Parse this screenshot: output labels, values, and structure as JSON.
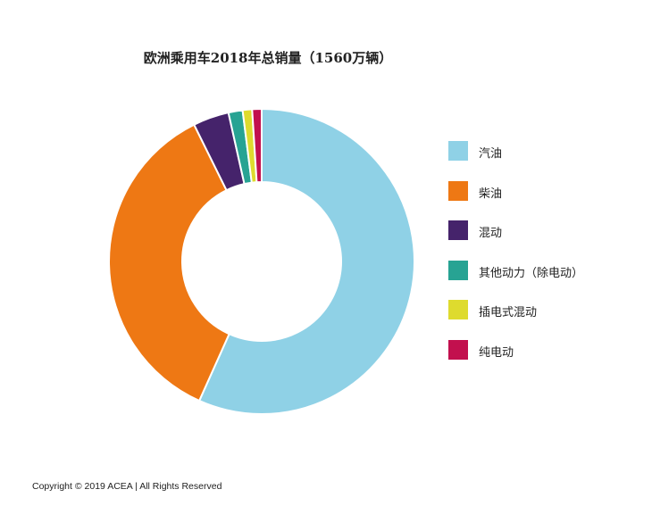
{
  "chart_data": {
    "type": "pie",
    "title": "欧洲乘用车2018年总销量（1560万辆）",
    "categories": [
      "汽油",
      "柴油",
      "混动",
      "其他动力（除电动）",
      "插电式混动",
      "纯电动"
    ],
    "values": [
      56.7,
      36.0,
      3.8,
      1.5,
      1.0,
      1.0
    ],
    "colors": [
      "#8FD1E6",
      "#EE7814",
      "#45236B",
      "#27A393",
      "#DEDB2E",
      "#C2104E"
    ],
    "donut": true,
    "start_angle": "top",
    "direction": "clockwise",
    "legend": "right"
  },
  "footer": {
    "copyright": "Copyright © 2019 ACEA | All Rights Reserved"
  }
}
